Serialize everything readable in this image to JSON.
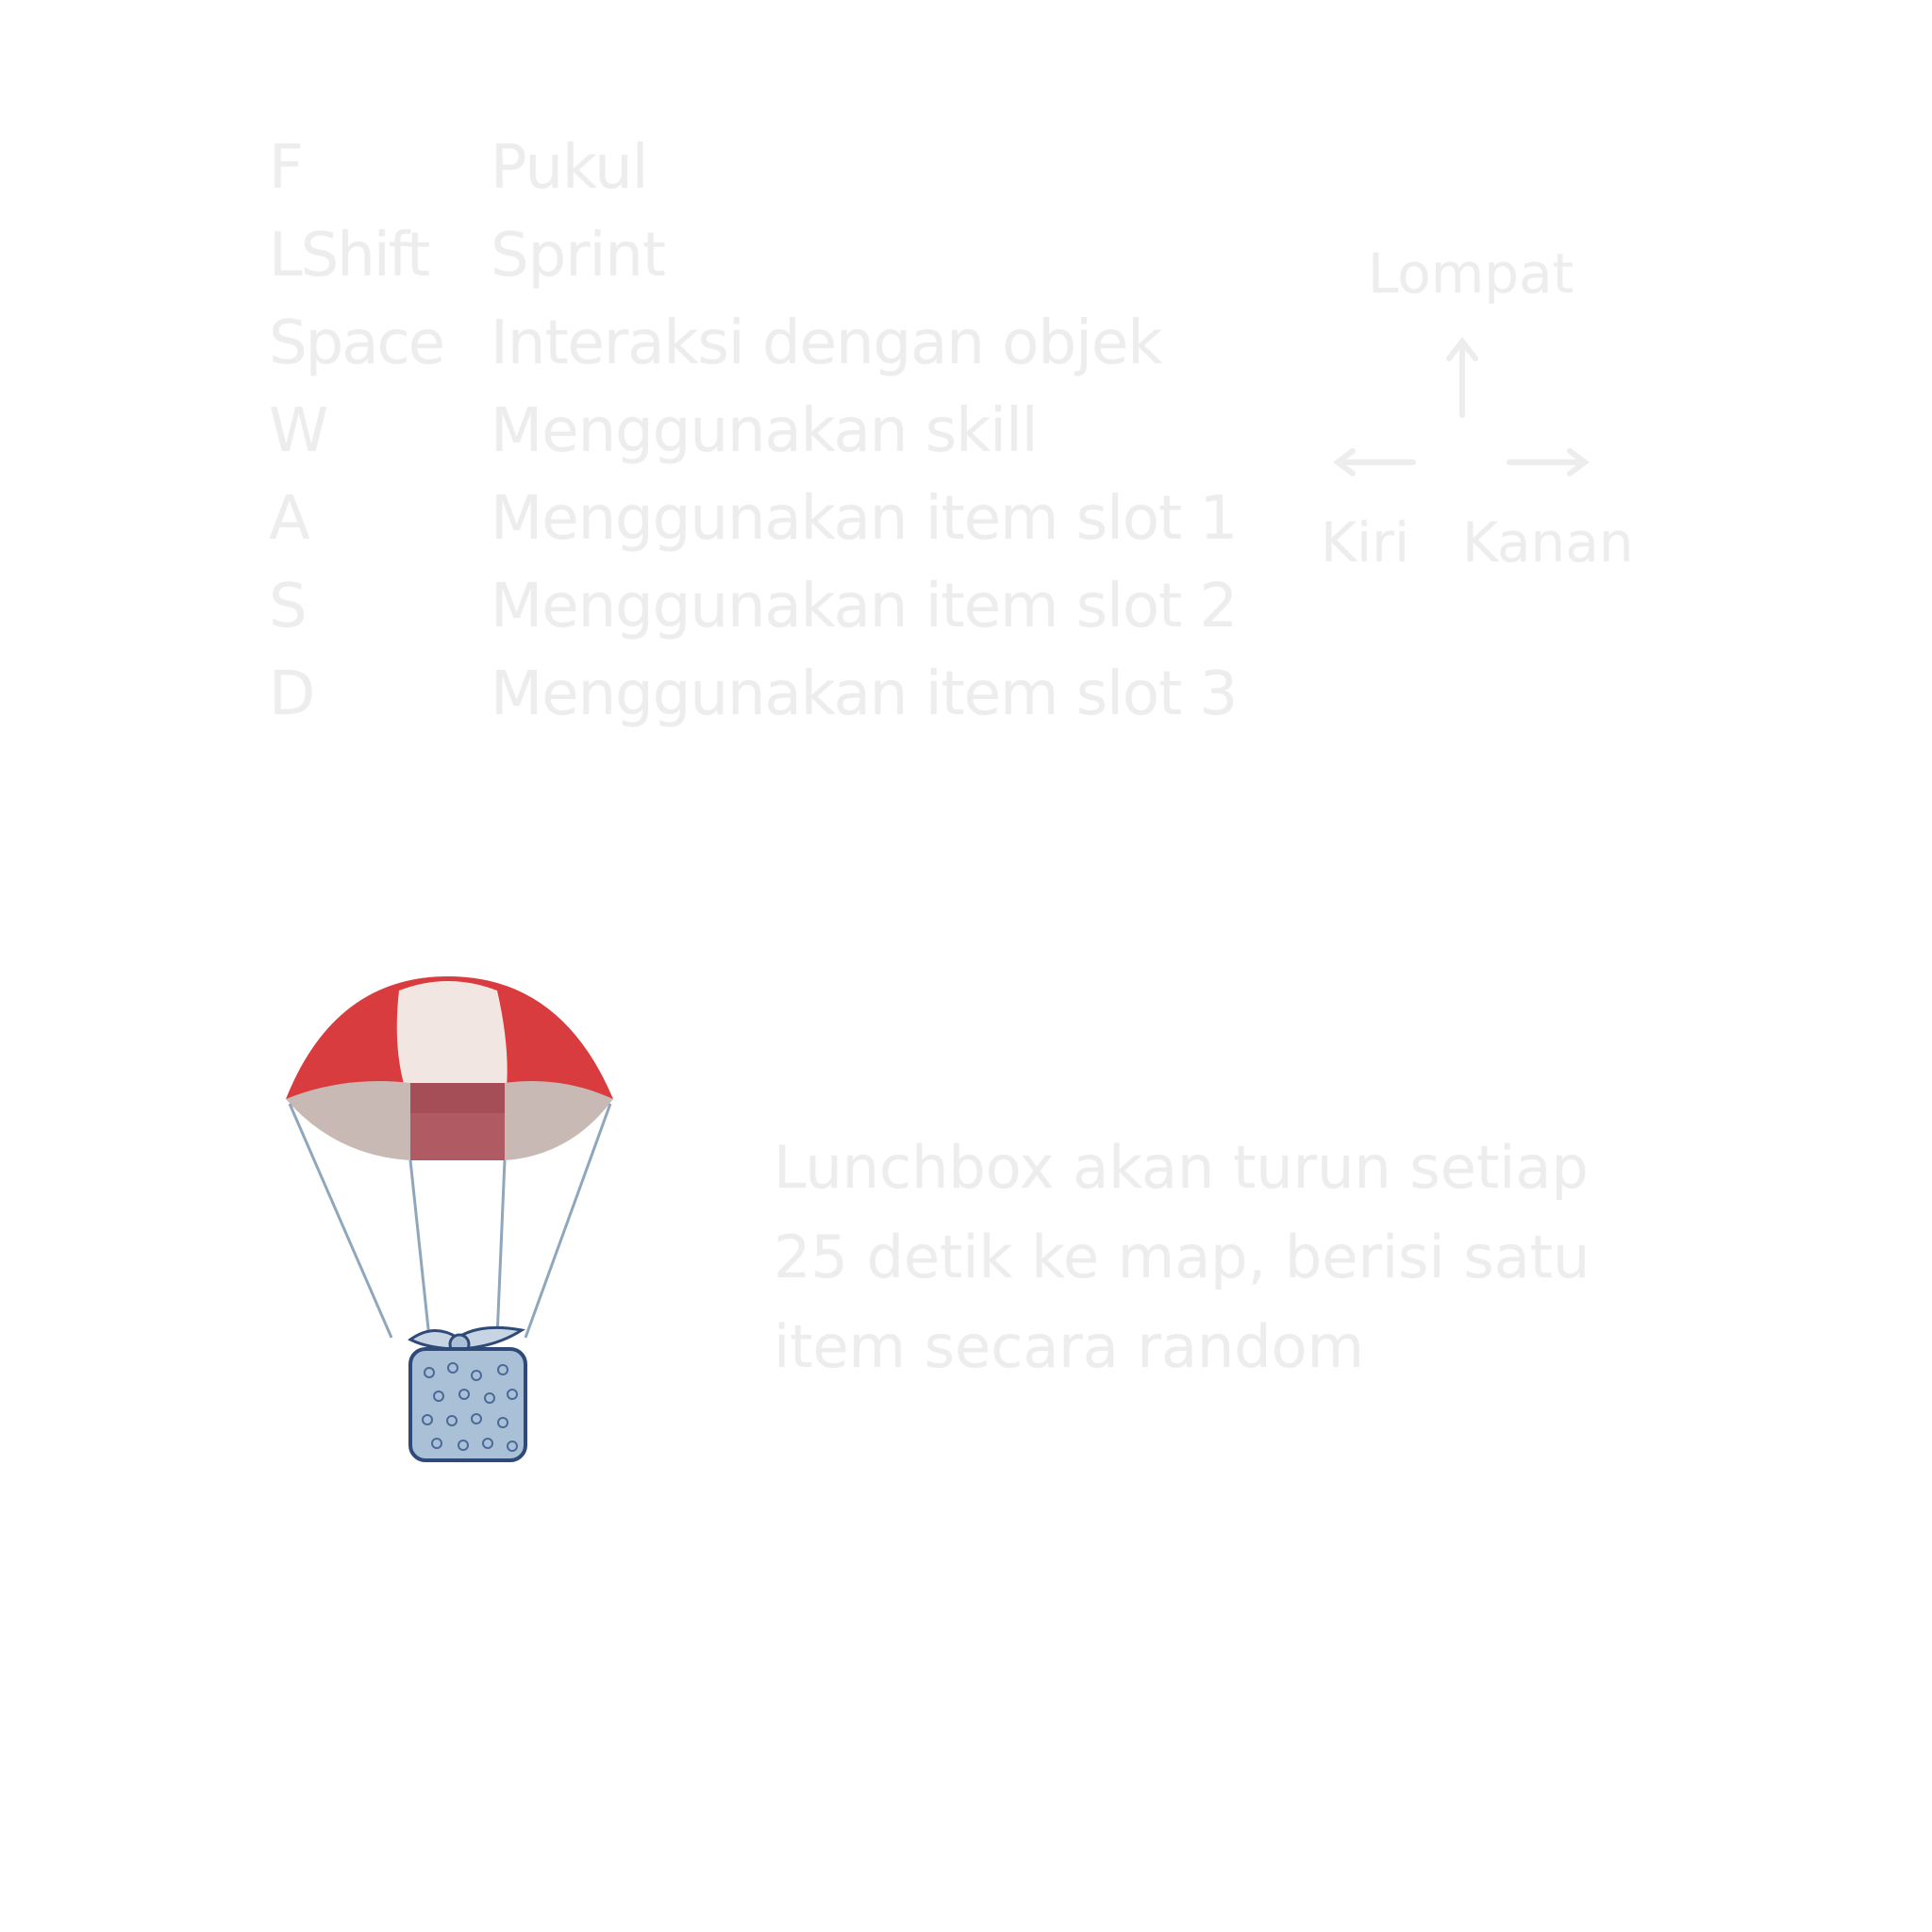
{
  "controls": [
    {
      "key": "F",
      "action": "Pukul"
    },
    {
      "key": "LShift",
      "action": "Sprint"
    },
    {
      "key": "Space",
      "action": "Interaksi dengan objek"
    },
    {
      "key": "W",
      "action": "Menggunakan skill"
    },
    {
      "key": "A",
      "action": "Menggunakan item slot 1"
    },
    {
      "key": "S",
      "action": "Menggunakan item slot 2"
    },
    {
      "key": "D",
      "action": "Menggunakan item slot 3"
    }
  ],
  "arrows": {
    "up_label": "Lompat",
    "left_label": "Kiri",
    "right_label": "Kanan"
  },
  "lunchbox": {
    "lines": [
      "Lunchbox akan turun setiap",
      "25 detik ke map, berisi satu",
      "item secara random"
    ]
  },
  "colors": {
    "text": "#ededed",
    "canopy_red": "#d93c3f",
    "canopy_white": "#f2e6e2",
    "box_blue": "#a9c0d6"
  }
}
